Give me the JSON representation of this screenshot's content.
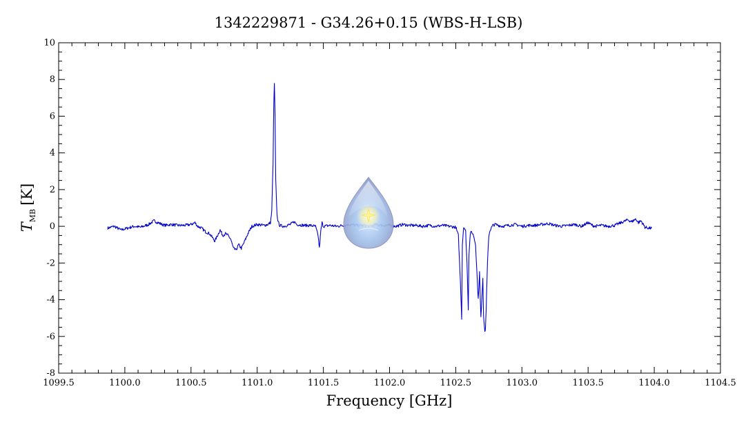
{
  "chart_data": {
    "type": "line",
    "title": "1342229871 - G34.26+0.15 (WBS-H-LSB)",
    "xlabel": "Frequency [GHz]",
    "ylabel_symbol": "T",
    "ylabel_subscript": "MB",
    "ylabel_unit": "[K]",
    "xlim": [
      1099.5,
      1104.5
    ],
    "ylim": [
      -8,
      10
    ],
    "x_major_step": 0.5,
    "x_minor_step": 0.1,
    "y_major_step": 2,
    "y_minor_step": 0.5,
    "x_tick_labels": [
      "1099.5",
      "1100.0",
      "1100.5",
      "1101.0",
      "1101.5",
      "1102.0",
      "1102.5",
      "1103.0",
      "1103.5",
      "1104.0",
      "1104.5"
    ],
    "y_tick_labels": [
      "-8",
      "-6",
      "-4",
      "-2",
      "0",
      "2",
      "4",
      "6",
      "8",
      "10"
    ],
    "grid": false,
    "line_color": "#0000cc",
    "series": [
      {
        "x": [
          1099.87,
          1099.92,
          1099.97,
          1100.02,
          1100.07,
          1100.12,
          1100.18,
          1100.22,
          1100.25,
          1100.3,
          1100.35,
          1100.4,
          1100.45,
          1100.5,
          1100.53,
          1100.55,
          1100.58,
          1100.61,
          1100.64,
          1100.66,
          1100.68,
          1100.7,
          1100.72,
          1100.74,
          1100.76,
          1100.78,
          1100.8,
          1100.82,
          1100.84,
          1100.86,
          1100.88,
          1100.9,
          1100.93,
          1100.96,
          1101.0,
          1101.05,
          1101.08,
          1101.1,
          1101.11,
          1101.12,
          1101.125,
          1101.13,
          1101.135,
          1101.14,
          1101.15,
          1101.16,
          1101.17,
          1101.2,
          1101.25,
          1101.28,
          1101.3,
          1101.35,
          1101.4,
          1101.44,
          1101.46,
          1101.47,
          1101.48,
          1101.49,
          1101.5,
          1101.55,
          1101.6,
          1101.65,
          1101.7,
          1101.75,
          1101.8,
          1101.85,
          1101.9,
          1101.95,
          1102.0,
          1102.05,
          1102.1,
          1102.15,
          1102.2,
          1102.25,
          1102.3,
          1102.35,
          1102.4,
          1102.45,
          1102.5,
          1102.52,
          1102.535,
          1102.545,
          1102.55,
          1102.56,
          1102.575,
          1102.585,
          1102.595,
          1102.6,
          1102.61,
          1102.62,
          1102.635,
          1102.65,
          1102.66,
          1102.67,
          1102.68,
          1102.685,
          1102.69,
          1102.7,
          1102.705,
          1102.71,
          1102.72,
          1102.725,
          1102.73,
          1102.74,
          1102.75,
          1102.76,
          1102.78,
          1102.8,
          1102.85,
          1102.9,
          1102.95,
          1103.0,
          1103.05,
          1103.1,
          1103.15,
          1103.2,
          1103.25,
          1103.3,
          1103.35,
          1103.4,
          1103.45,
          1103.5,
          1103.52,
          1103.55,
          1103.6,
          1103.65,
          1103.7,
          1103.75,
          1103.8,
          1103.83,
          1103.86,
          1103.88,
          1103.9,
          1103.93,
          1103.96,
          1103.98
        ],
        "y": [
          -0.1,
          0.0,
          -0.2,
          -0.1,
          0.0,
          -0.05,
          0.1,
          0.3,
          0.2,
          0.05,
          0.1,
          0.05,
          0.05,
          0.1,
          0.2,
          0.0,
          -0.1,
          -0.3,
          -0.4,
          -0.6,
          -0.8,
          -0.5,
          -0.2,
          -0.5,
          -0.4,
          -0.5,
          -0.7,
          -1.2,
          -1.3,
          -1.0,
          -1.2,
          -0.9,
          -0.4,
          0.0,
          0.1,
          0.05,
          0.1,
          0.2,
          0.8,
          3.5,
          6.5,
          7.8,
          6.0,
          2.5,
          0.6,
          0.2,
          0.05,
          0.0,
          0.1,
          0.25,
          0.1,
          0.05,
          0.05,
          0.0,
          -0.5,
          -1.2,
          -0.3,
          0.2,
          0.0,
          0.05,
          0.0,
          0.05,
          0.1,
          0.05,
          0.05,
          0.0,
          0.1,
          0.05,
          0.05,
          0.0,
          0.1,
          0.05,
          0.05,
          0.0,
          0.05,
          0.0,
          0.05,
          0.0,
          -0.05,
          -0.5,
          -3.0,
          -5.0,
          -1.0,
          0.0,
          -0.3,
          -2.0,
          -4.5,
          -1.5,
          -0.4,
          -0.3,
          -0.5,
          -1.0,
          -2.5,
          -4.0,
          -2.5,
          -3.8,
          -5.0,
          -3.5,
          -2.8,
          -4.8,
          -5.8,
          -5.5,
          -4.5,
          -2.0,
          -0.5,
          -0.2,
          0.05,
          0.1,
          0.0,
          0.05,
          0.1,
          0.0,
          0.05,
          0.05,
          0.1,
          0.15,
          0.05,
          0.0,
          0.05,
          0.1,
          0.0,
          0.2,
          0.1,
          0.0,
          0.05,
          0.0,
          0.05,
          0.2,
          0.35,
          0.25,
          0.4,
          0.2,
          0.3,
          -0.05,
          -0.1,
          -0.1
        ]
      }
    ]
  },
  "watermark": {
    "icon": "hifi-droplet-logo-icon"
  }
}
